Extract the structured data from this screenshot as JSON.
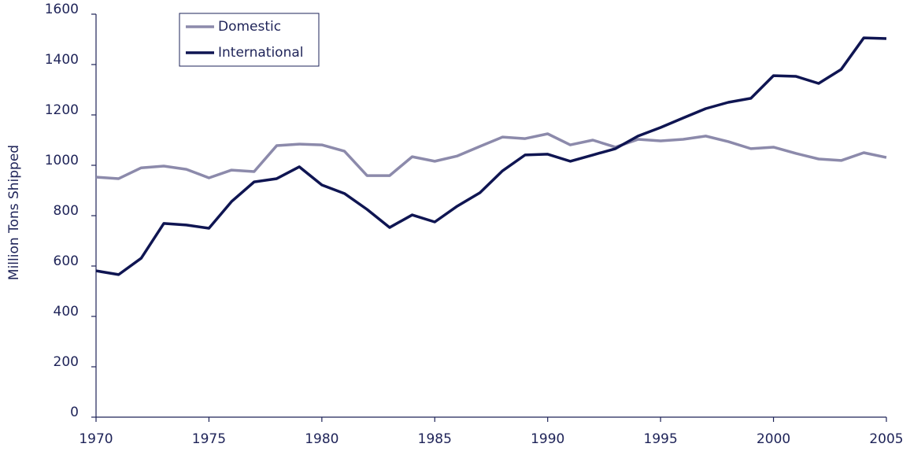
{
  "chart_data": {
    "type": "line",
    "y_label": "Million Tons Shipped",
    "x": [
      1970,
      1971,
      1972,
      1973,
      1974,
      1975,
      1976,
      1977,
      1978,
      1979,
      1980,
      1981,
      1982,
      1983,
      1984,
      1985,
      1986,
      1987,
      1988,
      1989,
      1990,
      1991,
      1992,
      1993,
      1994,
      1995,
      1996,
      1997,
      1998,
      1999,
      2000,
      2001,
      2002,
      2003,
      2004,
      2005
    ],
    "series": [
      {
        "name": "Domestic",
        "color": "#8c8aab",
        "values": [
          953,
          947,
          990,
          997,
          984,
          950,
          981,
          975,
          1078,
          1084,
          1081,
          1056,
          959,
          959,
          1034,
          1016,
          1037,
          1075,
          1112,
          1106,
          1125,
          1081,
          1100,
          1072,
          1103,
          1097,
          1103,
          1116,
          1094,
          1066,
          1072,
          1047,
          1025,
          1019,
          1050,
          1031
        ]
      },
      {
        "name": "International",
        "color": "#0f1552",
        "values": [
          581,
          566,
          631,
          769,
          763,
          750,
          856,
          934,
          947,
          994,
          922,
          888,
          825,
          753,
          803,
          775,
          838,
          891,
          978,
          1041,
          1044,
          1016,
          1041,
          1066,
          1116,
          1150,
          1188,
          1225,
          1250,
          1266,
          1356,
          1353,
          1325,
          1381,
          1506,
          1503
        ]
      }
    ],
    "xlim": [
      1970,
      2005
    ],
    "xticks": [
      1970,
      1975,
      1980,
      1985,
      1990,
      1995,
      2000,
      2005
    ],
    "ylim": [
      0,
      1600
    ],
    "yticks": [
      0,
      200,
      400,
      600,
      800,
      1000,
      1200,
      1400,
      1600
    ],
    "grid": false,
    "legend": "upper left"
  }
}
